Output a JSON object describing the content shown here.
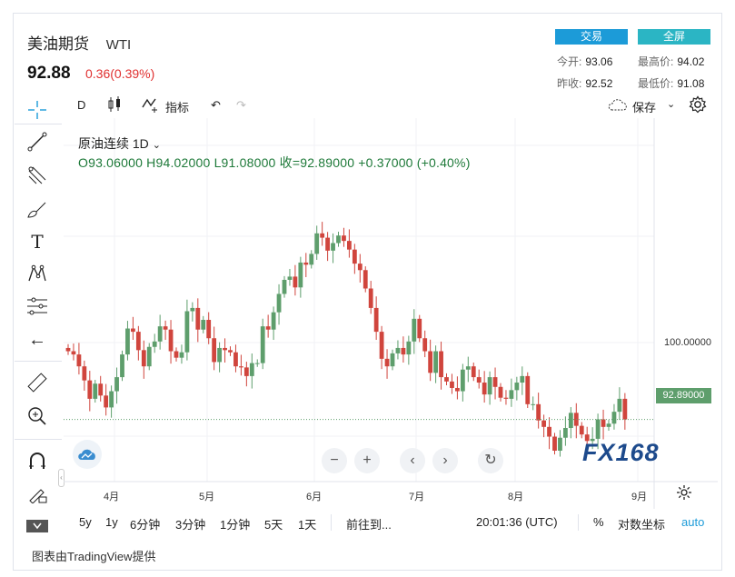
{
  "header": {
    "title": "美油期货",
    "symbol": "WTI",
    "price": "92.88",
    "change": "0.36(0.39%)",
    "trade_button": "交易",
    "fullscreen_button": "全屏",
    "stats": {
      "open_label": "今开:",
      "open": "93.06",
      "high_label": "最高价:",
      "high": "94.02",
      "prev_label": "昨收:",
      "prev": "92.52",
      "low_label": "最低价:",
      "low": "91.08"
    }
  },
  "toolbar": {
    "interval": "D",
    "indicators": "指标",
    "save": "保存"
  },
  "legend": {
    "name": "原油连续",
    "interval": "1D",
    "ohlc": "O93.06000  H94.02000  L91.08000  收=92.89000  +0.37000 (+0.40%)"
  },
  "axis": {
    "price_label": "100.00000",
    "last_price_tag": "92.89000",
    "months": [
      "4月",
      "5月",
      "6月",
      "7月",
      "8月",
      "9月"
    ]
  },
  "bottom": {
    "ranges": [
      "5y",
      "1y",
      "6分钟",
      "3分钟",
      "1分钟",
      "5天",
      "1天"
    ],
    "goto": "前往到...",
    "time": "20:01:36 (UTC)",
    "percent": "%",
    "log": "对数坐标",
    "auto": "auto"
  },
  "footer": "图表由TradingView提供",
  "logo": "FX168",
  "colors": {
    "up": "#5e9e6c",
    "down": "#d0453d",
    "accent": "#1c9bd8"
  },
  "chart_data": {
    "type": "candlestick",
    "y_reference": 100.0,
    "last_close": 92.89,
    "closes": [
      99.2,
      98.9,
      97.8,
      96.5,
      94.8,
      96.2,
      95.1,
      94.0,
      95.5,
      96.8,
      98.9,
      101.3,
      101.0,
      99.3,
      97.8,
      99.6,
      100.1,
      101.5,
      101.2,
      99.2,
      98.6,
      99.1,
      102.9,
      103.2,
      101.2,
      102.1,
      100.4,
      98.2,
      99.5,
      99.3,
      99.1,
      97.8,
      97.7,
      96.9,
      98.1,
      98.1,
      101.5,
      101.2,
      102.8,
      104.5,
      105.8,
      106.1,
      105.1,
      107.4,
      107.2,
      108.2,
      110.1,
      109.7,
      108.5,
      109.2,
      109.9,
      109.4,
      108.6,
      107.3,
      106.7,
      105.0,
      103.2,
      101.0,
      98.5,
      97.8,
      99.0,
      99.5,
      98.9,
      100.1,
      102.2,
      100.4,
      99.2,
      97.2,
      99.2,
      96.8,
      96.4,
      95.8,
      95.5,
      97.5,
      97.8,
      96.8,
      96.3,
      95.2,
      96.8,
      95.9,
      94.9,
      94.8,
      95.6,
      96.3,
      96.9,
      94.3,
      94.3,
      92.8,
      92.2,
      91.3,
      90.0,
      91.2,
      92.1,
      93.5,
      92.3,
      91.5,
      90.9,
      91.1,
      92.9,
      92.2,
      92.5,
      93.6,
      94.8,
      92.89
    ]
  }
}
